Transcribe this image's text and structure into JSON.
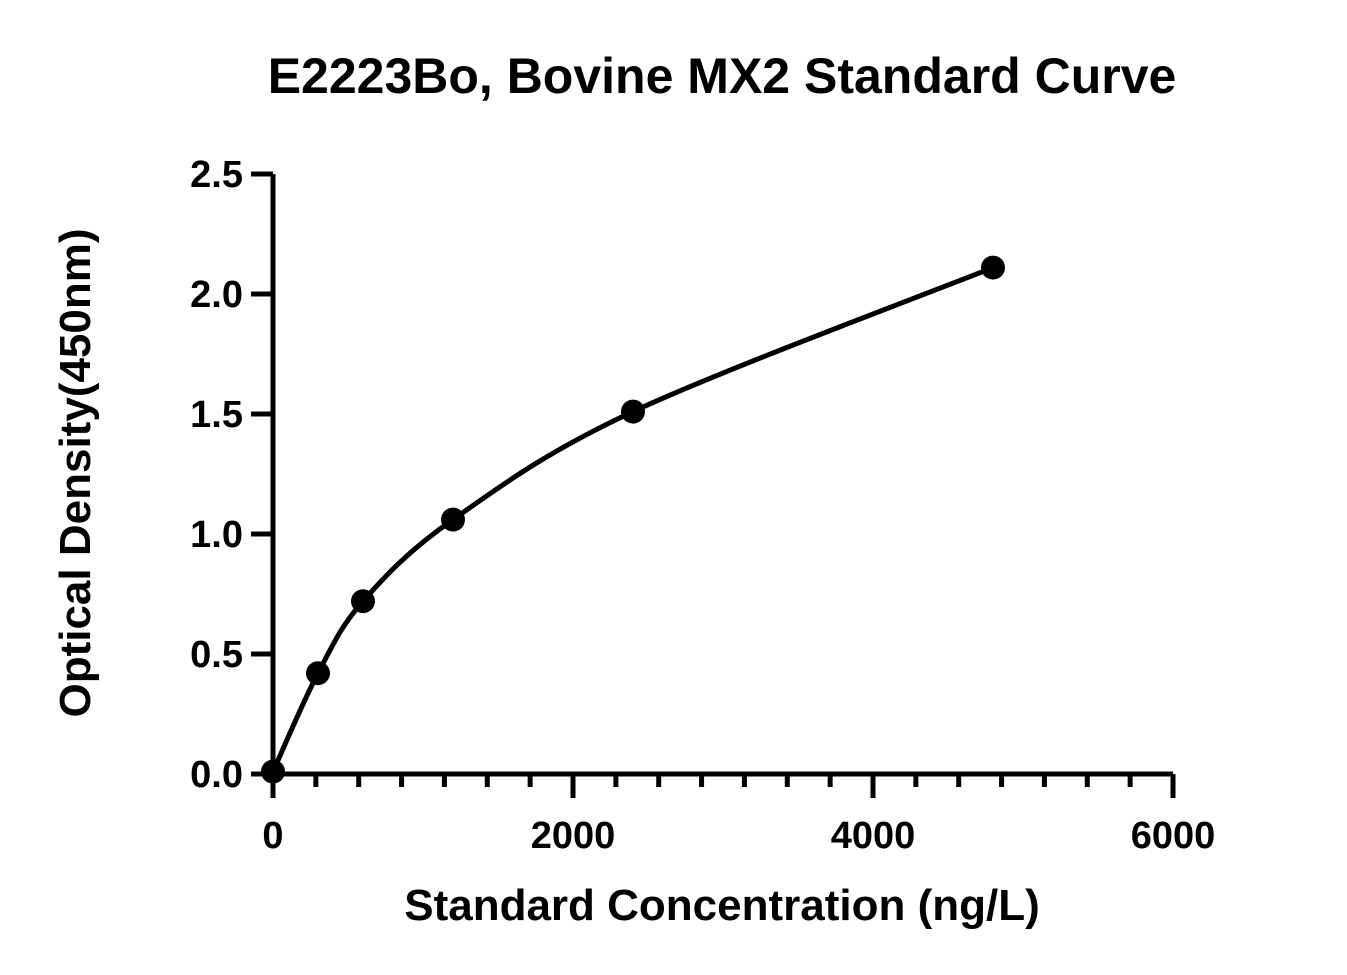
{
  "chart_data": {
    "type": "scatter",
    "title": "E2223Bo, Bovine MX2 Standard Curve",
    "xlabel": "Standard Concentration (ng/L)",
    "ylabel": "Optical Density(450nm)",
    "xlim": [
      0,
      6000
    ],
    "ylim": [
      0,
      2.5
    ],
    "x_ticks": [
      "0",
      "2000",
      "4000",
      "6000"
    ],
    "y_ticks": [
      "0.0",
      "0.5",
      "1.0",
      "1.5",
      "2.0",
      "2.5"
    ],
    "grid": false,
    "series": [
      {
        "x": [
          0,
          300,
          600,
          1200,
          2400,
          4800
        ],
        "y": [
          0.01,
          0.42,
          0.72,
          1.06,
          1.51,
          2.11
        ]
      }
    ],
    "fit_curve": "smooth",
    "colors": {
      "ink": "#000000",
      "background": "#ffffff"
    }
  }
}
